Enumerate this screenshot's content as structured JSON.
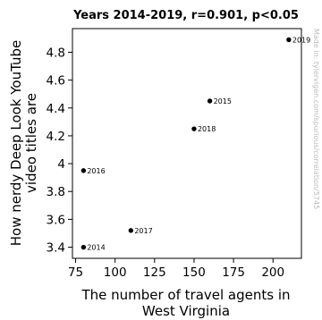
{
  "chart_data": {
    "type": "scatter",
    "title": "Years 2014-2019, r=0.901, p<0.05",
    "xlabel_lines": [
      "The number of travel agents in",
      "West Virginia"
    ],
    "ylabel_lines": [
      "How nerdy Deep Look YouTube",
      "video titles are"
    ],
    "xlim": [
      73,
      218
    ],
    "ylim": [
      3.32,
      4.97
    ],
    "xticks": [
      "75",
      "100",
      "125",
      "150",
      "175",
      "200"
    ],
    "yticks": [
      "3.4",
      "3.6",
      "3.8",
      "4",
      "4.2",
      "4.4",
      "4.6",
      "4.8"
    ],
    "points": [
      {
        "label": "2014",
        "x": 80,
        "y": 3.4
      },
      {
        "label": "2015",
        "x": 160,
        "y": 4.45
      },
      {
        "label": "2016",
        "x": 80,
        "y": 3.95
      },
      {
        "label": "2017",
        "x": 110,
        "y": 3.52
      },
      {
        "label": "2018",
        "x": 150,
        "y": 4.25
      },
      {
        "label": "2019",
        "x": 210,
        "y": 4.89
      }
    ],
    "grid": false,
    "point_color": "#000000"
  },
  "watermark": "Made in: tylervigen.com/spurious/correlation/5745"
}
